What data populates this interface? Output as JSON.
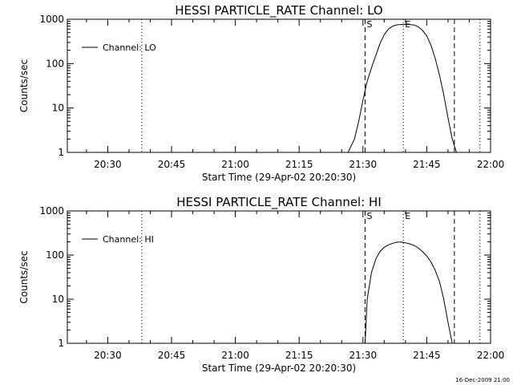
{
  "footer": "16-Dec-2009 21:00",
  "chart_data": [
    {
      "type": "line",
      "title": "HESSI PARTICLE_RATE Channel: LO",
      "xlabel": "Start Time (29-Apr-02 20:20:30)",
      "ylabel": "Counts/sec",
      "yscale": "log",
      "xlim": [
        "20:20:30",
        "22:00"
      ],
      "ylim": [
        1,
        1000
      ],
      "x_ticks": [
        "20:30",
        "20:45",
        "21:00",
        "21:15",
        "21:30",
        "21:45",
        "22:00"
      ],
      "y_ticks": [
        "1",
        "10",
        "100",
        "1000"
      ],
      "legend": {
        "position": "top-left",
        "label": "Channel: LO"
      },
      "markers": [
        {
          "time": "20:38",
          "style": "dotted",
          "label": ""
        },
        {
          "time": "21:30:30",
          "style": "dashed",
          "label": "S"
        },
        {
          "time": "21:39:30",
          "style": "dotted",
          "label": "E"
        },
        {
          "time": "21:51:30",
          "style": "dashed",
          "label": ""
        },
        {
          "time": "21:57:30",
          "style": "dotted",
          "label": ""
        }
      ],
      "series": [
        {
          "name": "Channel: LO",
          "points": [
            [
              "21:26:30",
              1
            ],
            [
              "21:28",
              2
            ],
            [
              "21:29",
              5
            ],
            [
              "21:30",
              15
            ],
            [
              "21:31",
              40
            ],
            [
              "21:32",
              80
            ],
            [
              "21:33",
              150
            ],
            [
              "21:34",
              280
            ],
            [
              "21:35",
              450
            ],
            [
              "21:36",
              600
            ],
            [
              "21:37",
              700
            ],
            [
              "21:38",
              750
            ],
            [
              "21:39",
              760
            ],
            [
              "21:40",
              770
            ],
            [
              "21:41",
              760
            ],
            [
              "21:42",
              740
            ],
            [
              "21:43",
              680
            ],
            [
              "21:44",
              560
            ],
            [
              "21:45",
              420
            ],
            [
              "21:46",
              260
            ],
            [
              "21:47",
              130
            ],
            [
              "21:48",
              55
            ],
            [
              "21:49",
              20
            ],
            [
              "21:50",
              6
            ],
            [
              "21:51",
              2
            ],
            [
              "21:52",
              1
            ]
          ]
        }
      ]
    },
    {
      "type": "line",
      "title": "HESSI PARTICLE_RATE Channel: HI",
      "xlabel": "Start Time (29-Apr-02 20:20:30)",
      "ylabel": "Counts/sec",
      "yscale": "log",
      "xlim": [
        "20:20:30",
        "22:00"
      ],
      "ylim": [
        1,
        1000
      ],
      "x_ticks": [
        "20:30",
        "20:45",
        "21:00",
        "21:15",
        "21:30",
        "21:45",
        "22:00"
      ],
      "y_ticks": [
        "1",
        "10",
        "100",
        "1000"
      ],
      "legend": {
        "position": "top-left",
        "label": "Channel: HI"
      },
      "markers": [
        {
          "time": "20:38",
          "style": "dotted",
          "label": ""
        },
        {
          "time": "21:30:30",
          "style": "dashed",
          "label": "S"
        },
        {
          "time": "21:39:30",
          "style": "dotted",
          "label": "E"
        },
        {
          "time": "21:51:30",
          "style": "dashed",
          "label": ""
        },
        {
          "time": "21:57:30",
          "style": "dotted",
          "label": ""
        }
      ],
      "series": [
        {
          "name": "Channel: HI",
          "points": [
            [
              "21:30:30",
              1
            ],
            [
              "21:31",
              10
            ],
            [
              "21:32",
              40
            ],
            [
              "21:33",
              80
            ],
            [
              "21:34",
              120
            ],
            [
              "21:35",
              150
            ],
            [
              "21:36",
              170
            ],
            [
              "21:37",
              185
            ],
            [
              "21:38",
              195
            ],
            [
              "21:39",
              198
            ],
            [
              "21:40",
              190
            ],
            [
              "21:41",
              180
            ],
            [
              "21:42",
              165
            ],
            [
              "21:43",
              145
            ],
            [
              "21:44",
              120
            ],
            [
              "21:45",
              95
            ],
            [
              "21:46",
              70
            ],
            [
              "21:47",
              45
            ],
            [
              "21:48",
              25
            ],
            [
              "21:49",
              10
            ],
            [
              "21:50",
              3
            ],
            [
              "21:51",
              1
            ]
          ]
        }
      ]
    }
  ]
}
